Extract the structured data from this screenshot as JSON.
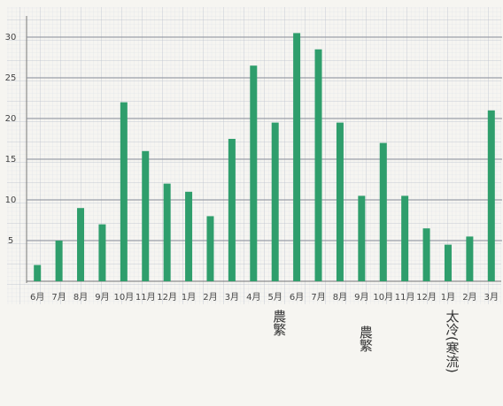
{
  "chart_data": {
    "type": "bar",
    "categories": [
      "6月",
      "7月",
      "8月",
      "9月",
      "10月",
      "11月",
      "12月",
      "1月",
      "2月",
      "3月",
      "4月",
      "5月",
      "6月",
      "7月",
      "8月",
      "9月",
      "10月",
      "11月",
      "12月",
      "1月",
      "2月",
      "3月"
    ],
    "values": [
      2,
      5,
      9,
      7,
      22,
      16,
      12,
      11,
      8,
      17.5,
      26.5,
      19.5,
      30.5,
      28.5,
      19.5,
      10.5,
      17,
      10.5,
      6.5,
      4.5,
      5.5,
      21
    ],
    "color": "#2f9e6c",
    "ylim": [
      0,
      32
    ],
    "yticks": [
      5,
      10,
      15,
      20,
      25,
      30
    ],
    "grid": true,
    "annotations": [
      "農繁",
      "農繁",
      "太冷(寒流)"
    ]
  }
}
